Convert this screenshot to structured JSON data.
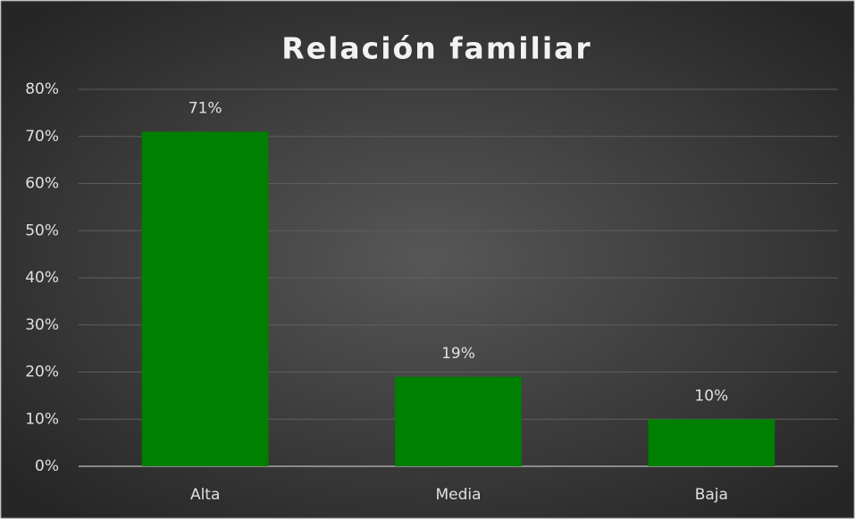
{
  "chart_data": {
    "type": "bar",
    "title": "Relación familiar",
    "categories": [
      "Alta",
      "Media",
      "Baja"
    ],
    "values": [
      71,
      19,
      10
    ],
    "value_labels": [
      "71%",
      "19%",
      "10%"
    ],
    "color": "#008000",
    "ylim": [
      0,
      80
    ],
    "yticks": [
      {
        "value": 0,
        "label": "0%"
      },
      {
        "value": 10,
        "label": "10%"
      },
      {
        "value": 20,
        "label": "20%"
      },
      {
        "value": 30,
        "label": "30%"
      },
      {
        "value": 40,
        "label": "40%"
      },
      {
        "value": 50,
        "label": "50%"
      },
      {
        "value": 60,
        "label": "60%"
      },
      {
        "value": 70,
        "label": "70%"
      },
      {
        "value": 80,
        "label": "80%"
      }
    ],
    "grid": true
  }
}
